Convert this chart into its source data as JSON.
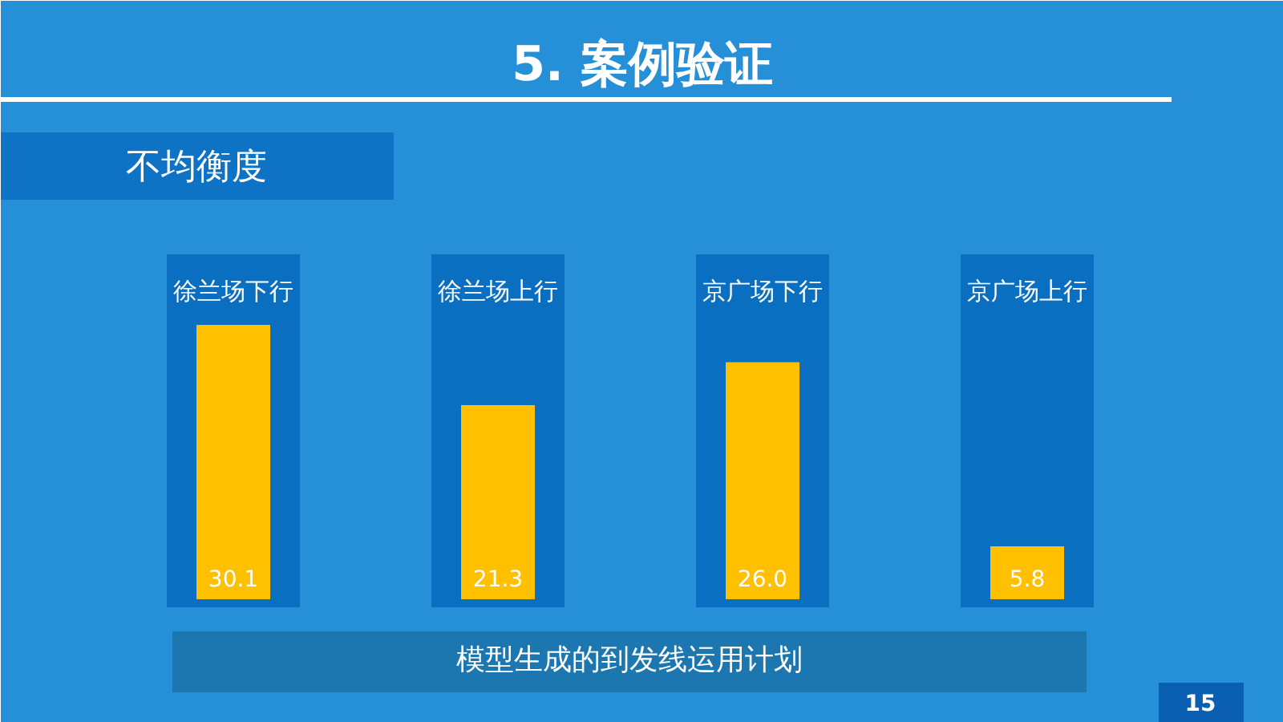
{
  "chart_data": {
    "type": "bar",
    "title": "5. 案例验证",
    "subtitle": "不均衡度",
    "xlabel": "模型生成的到发线运用计划",
    "categories": [
      "徐兰场下行",
      "徐兰场上行",
      "京广场下行",
      "京广场上行"
    ],
    "values": [
      30.1,
      21.3,
      26.0,
      5.8
    ],
    "value_labels": [
      "30.1",
      "21.3",
      "26.0",
      "5.8"
    ],
    "color": "#ffc000",
    "annotations": [
      "15"
    ]
  }
}
